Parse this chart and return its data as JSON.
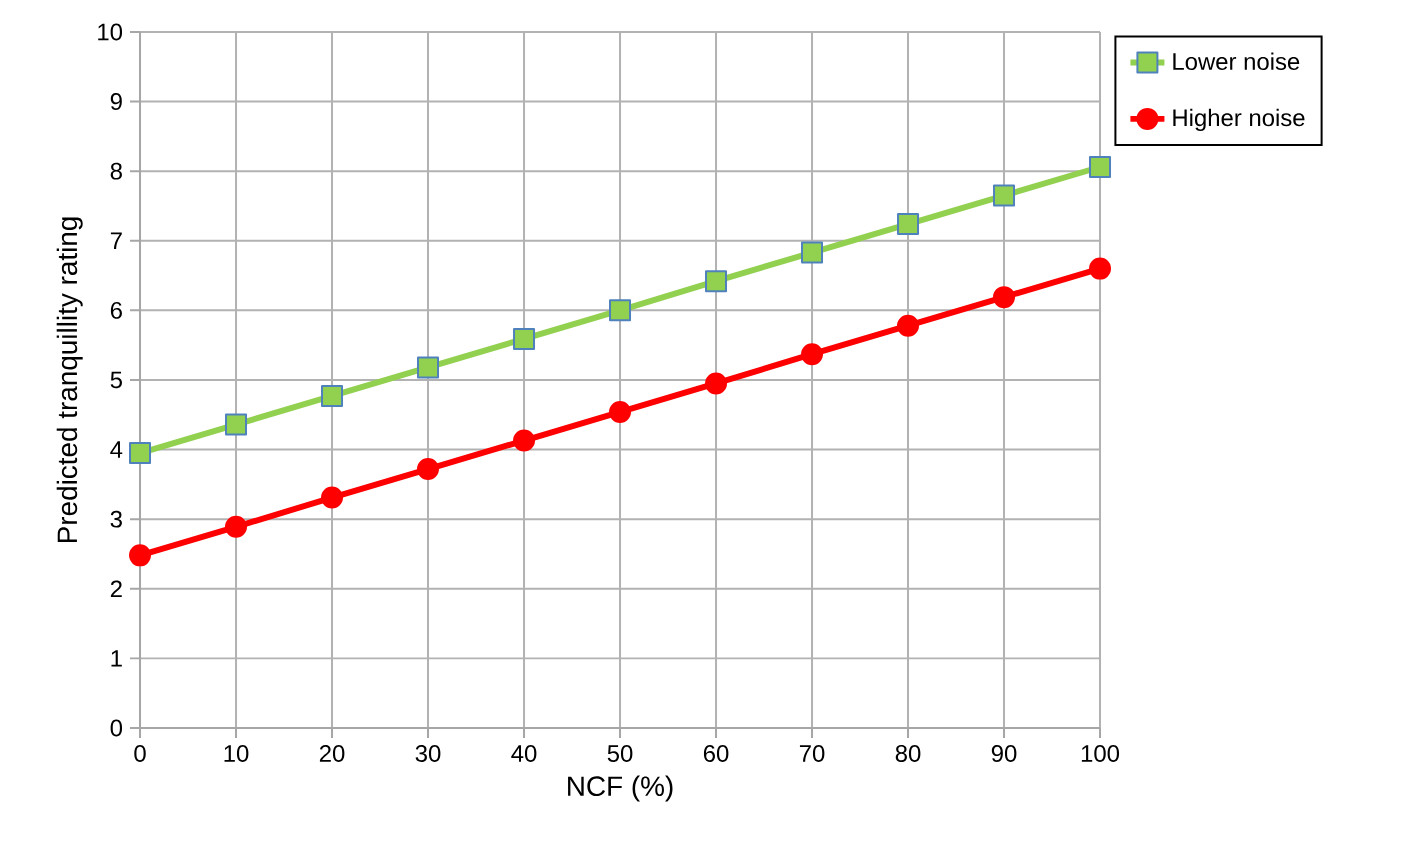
{
  "chart_data": {
    "type": "line",
    "xlabel": "NCF (%)",
    "ylabel": "Predicted tranquillity rating",
    "x": [
      0,
      10,
      20,
      30,
      40,
      50,
      60,
      70,
      80,
      90,
      100
    ],
    "series": [
      {
        "name": "Lower noise",
        "color": "#92d050",
        "marker": "square",
        "values": [
          3.95,
          4.36,
          4.77,
          5.18,
          5.59,
          6.0,
          6.42,
          6.83,
          7.24,
          7.65,
          8.06
        ]
      },
      {
        "name": "Higher noise",
        "color": "#ff0000",
        "marker": "circle",
        "values": [
          2.48,
          2.89,
          3.31,
          3.72,
          4.13,
          4.54,
          4.95,
          5.37,
          5.78,
          6.19,
          6.6
        ]
      }
    ],
    "xlim": [
      0,
      100
    ],
    "xticks": [
      0,
      10,
      20,
      30,
      40,
      50,
      60,
      70,
      80,
      90,
      100
    ],
    "ylim": [
      0,
      10
    ],
    "yticks": [
      0,
      1,
      2,
      3,
      4,
      5,
      6,
      7,
      8,
      9,
      10
    ],
    "grid": true,
    "legend": "right",
    "line_style": "solid"
  }
}
